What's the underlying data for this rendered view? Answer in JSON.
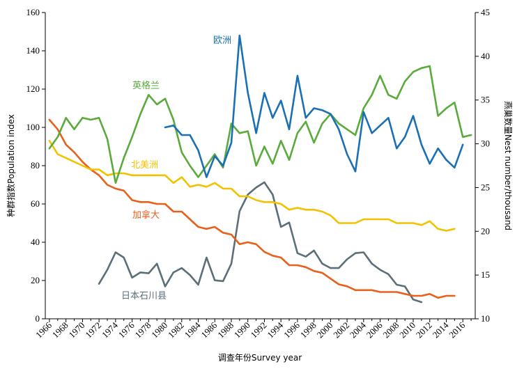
{
  "chart_data": {
    "type": "line",
    "title": "",
    "xlabel": "调查年份Survey year",
    "ylabel_left": "种群指数Population index",
    "ylabel_right": "燕巢数量Nest number/thousand",
    "xlim": [
      1965.5,
      2017.5
    ],
    "ylim_left": [
      0,
      160
    ],
    "ylim_right": [
      10,
      45
    ],
    "x_ticks": [
      1966,
      1968,
      1970,
      1972,
      1974,
      1976,
      1978,
      1980,
      1982,
      1984,
      1986,
      1988,
      1990,
      1992,
      1994,
      1996,
      1998,
      2000,
      2002,
      2004,
      2006,
      2008,
      2010,
      2012,
      2014,
      2016
    ],
    "y_left_ticks": [
      0,
      20,
      40,
      60,
      80,
      100,
      120,
      140,
      160
    ],
    "y_right_ticks": [
      10,
      15,
      20,
      25,
      30,
      35,
      40,
      45
    ],
    "series": [
      {
        "name": "欧洲",
        "color": "#1a6fb5",
        "axis": "left",
        "x": [
          1980,
          1981,
          1982,
          1983,
          1984,
          1985,
          1986,
          1987,
          1988,
          1989,
          1990,
          1991,
          1992,
          1993,
          1994,
          1995,
          1996,
          1997,
          1998,
          1999,
          2000,
          2001,
          2002,
          2003,
          2004,
          2005,
          2006,
          2007,
          2008,
          2009,
          2010,
          2011,
          2012,
          2013,
          2014,
          2015,
          2016
        ],
        "values": [
          100,
          101,
          96,
          96,
          88,
          74,
          85,
          80,
          92,
          148,
          118,
          97,
          118,
          105,
          114,
          99,
          127,
          105,
          110,
          109,
          107,
          99,
          86,
          77,
          108,
          97,
          101,
          105,
          89,
          95,
          106,
          91,
          81,
          89,
          83,
          79,
          91
        ]
      },
      {
        "name": "英格兰",
        "color": "#5aaa3c",
        "axis": "left",
        "x": [
          1966,
          1967,
          1968,
          1969,
          1970,
          1971,
          1972,
          1973,
          1974,
          1975,
          1976,
          1977,
          1978,
          1979,
          1980,
          1981,
          1982,
          1983,
          1984,
          1985,
          1986,
          1987,
          1988,
          1989,
          1990,
          1991,
          1992,
          1993,
          1994,
          1995,
          1996,
          1997,
          1998,
          1999,
          2000,
          2001,
          2002,
          2003,
          2004,
          2005,
          2006,
          2007,
          2008,
          2009,
          2010,
          2011,
          2012,
          2013,
          2014,
          2015,
          2016,
          2017
        ],
        "values": [
          89,
          95,
          105,
          99,
          105,
          104,
          105,
          94,
          71,
          84,
          95,
          107,
          117,
          112,
          115,
          104,
          87,
          80,
          74,
          80,
          86,
          79,
          102,
          97,
          98,
          80,
          90,
          81,
          93,
          83,
          97,
          103,
          92,
          102,
          107,
          102,
          99,
          96,
          110,
          117,
          127,
          117,
          115,
          124,
          129,
          131,
          132,
          106,
          110,
          113,
          95,
          96
        ]
      },
      {
        "name": "北美洲",
        "color": "#f2c200",
        "axis": "left",
        "x": [
          1966,
          1967,
          1968,
          1969,
          1970,
          1971,
          1972,
          1973,
          1974,
          1975,
          1976,
          1977,
          1978,
          1979,
          1980,
          1981,
          1982,
          1983,
          1984,
          1985,
          1986,
          1987,
          1988,
          1989,
          1990,
          1991,
          1992,
          1993,
          1994,
          1995,
          1996,
          1997,
          1998,
          1999,
          2000,
          2001,
          2002,
          2003,
          2004,
          2005,
          2006,
          2007,
          2008,
          2009,
          2010,
          2011,
          2012,
          2013,
          2014,
          2015
        ],
        "values": [
          93,
          86,
          84,
          82,
          80,
          78,
          78,
          75,
          76,
          76,
          75,
          75,
          75,
          75,
          75,
          71,
          74,
          69,
          70,
          69,
          71,
          68,
          68,
          64,
          64,
          62,
          61,
          61,
          60,
          57,
          58,
          57,
          57,
          56,
          54,
          50,
          50,
          50,
          52,
          52,
          52,
          52,
          50,
          50,
          50,
          49,
          51,
          47,
          46,
          47
        ]
      },
      {
        "name": "加拿大",
        "color": "#e8601c",
        "axis": "left",
        "x": [
          1966,
          1967,
          1968,
          1969,
          1970,
          1971,
          1972,
          1973,
          1974,
          1975,
          1976,
          1977,
          1978,
          1979,
          1980,
          1981,
          1982,
          1983,
          1984,
          1985,
          1986,
          1987,
          1988,
          1989,
          1990,
          1991,
          1992,
          1993,
          1994,
          1995,
          1996,
          1997,
          1998,
          1999,
          2000,
          2001,
          2002,
          2003,
          2004,
          2005,
          2006,
          2007,
          2008,
          2009,
          2010,
          2011,
          2012,
          2013,
          2014,
          2015
        ],
        "values": [
          104,
          99,
          91,
          87,
          82,
          78,
          75,
          70,
          68,
          67,
          62,
          61,
          61,
          60,
          60,
          56,
          56,
          52,
          48,
          47,
          48,
          45,
          44,
          39,
          40,
          39,
          35,
          33,
          32,
          28,
          28,
          27,
          25,
          24,
          21,
          18,
          17,
          15,
          15,
          15,
          14,
          14,
          14,
          13,
          12,
          12,
          13,
          11,
          12,
          12
        ]
      },
      {
        "name": "日本石川县",
        "color": "#5c6e78",
        "axis": "right",
        "x": [
          1972,
          1973,
          1974,
          1975,
          1976,
          1977,
          1978,
          1979,
          1980,
          1981,
          1982,
          1983,
          1984,
          1985,
          1986,
          1987,
          1988,
          1989,
          1990,
          1991,
          1992,
          1993,
          1994,
          1995,
          1996,
          1997,
          1998,
          1999,
          2000,
          2001,
          2002,
          2003,
          2004,
          2005,
          2006,
          2007,
          2008,
          2009,
          2010,
          2011
        ],
        "values": [
          14,
          15.6,
          17.6,
          17,
          14.7,
          15.3,
          15.2,
          16.3,
          13.7,
          15.3,
          15.8,
          15,
          13.9,
          17,
          14.4,
          14.3,
          16.3,
          22.3,
          24.2,
          25,
          25.6,
          24.2,
          20.5,
          21,
          17.5,
          17.1,
          17.8,
          16.3,
          15.8,
          15.8,
          16.8,
          17.5,
          17.6,
          16.3,
          15.6,
          15.1,
          13.9,
          13.7,
          12.2,
          11.9
        ]
      }
    ]
  }
}
